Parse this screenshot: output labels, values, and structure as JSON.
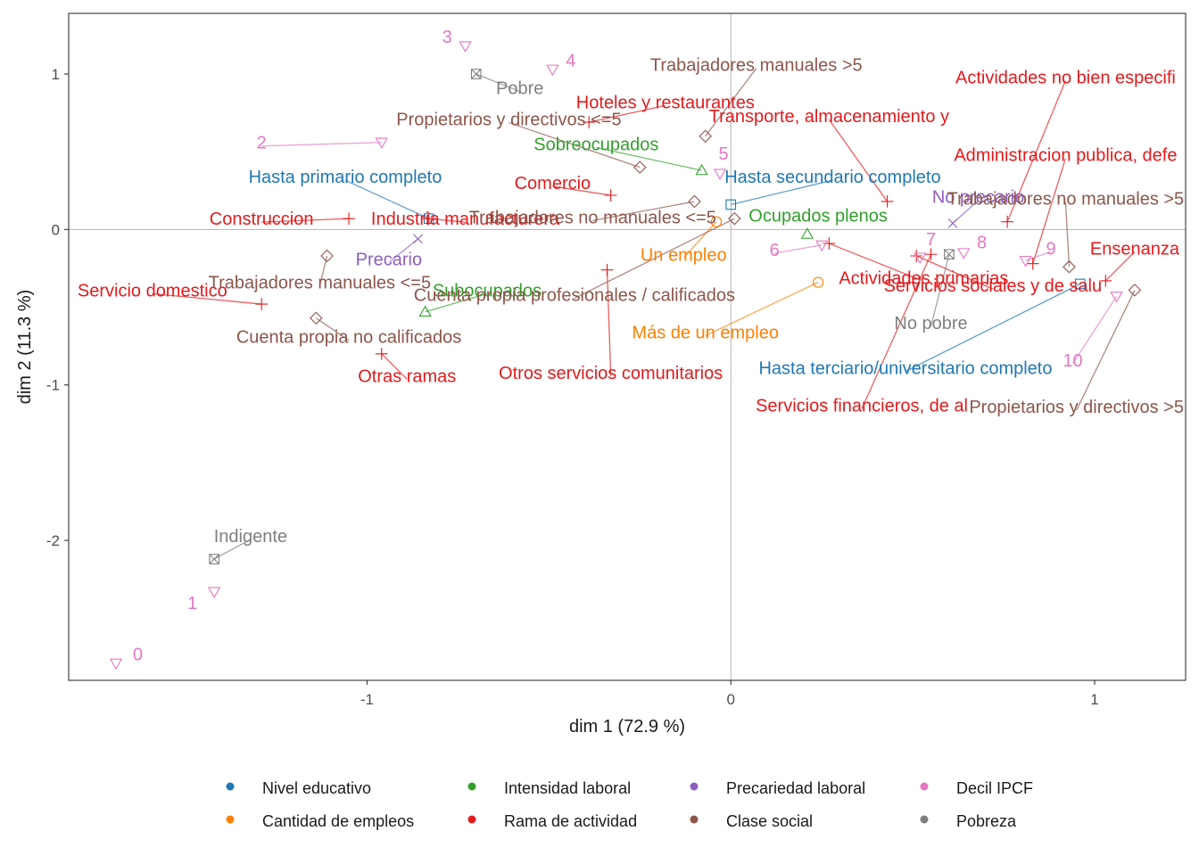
{
  "chart_data": {
    "type": "scatter",
    "xlabel": "dim 1 (72.9 %)",
    "ylabel": "dim 2 (11.3 %)",
    "xlim": [
      -1.82,
      1.25
    ],
    "ylim": [
      -2.9,
      1.39
    ],
    "xticks": [
      {
        "v": -1,
        "label": "-1"
      },
      {
        "v": 0,
        "label": "0"
      },
      {
        "v": 1,
        "label": "1"
      }
    ],
    "yticks": [
      {
        "v": -2,
        "label": "-2"
      },
      {
        "v": -1,
        "label": "-1"
      },
      {
        "v": 0,
        "label": "0"
      },
      {
        "v": 1,
        "label": "1"
      }
    ],
    "reference_lines": [
      0,
      0
    ],
    "grid": false,
    "legend_position": "bottom",
    "groups": [
      {
        "name": "Nivel educativo",
        "color": "#1f78b4",
        "shape": "square"
      },
      {
        "name": "Cantidad de empleos",
        "color": "#ff7f00",
        "shape": "circle"
      },
      {
        "name": "Intensidad laboral",
        "color": "#33a02c",
        "shape": "triangle-up"
      },
      {
        "name": "Rama de actividad",
        "color": "#e31a1c",
        "shape": "plus"
      },
      {
        "name": "Precariedad laboral",
        "color": "#8e5fbf",
        "shape": "cross"
      },
      {
        "name": "Clase social",
        "color": "#8c564b",
        "shape": "diamond"
      },
      {
        "name": "Decil IPCF",
        "color": "#e377c2",
        "shape": "triangle-down"
      },
      {
        "name": "Pobreza",
        "color": "#7f7f7f",
        "shape": "square-x"
      }
    ],
    "points": [
      {
        "g": 0,
        "label": "Hasta primario completo",
        "x": -0.83,
        "y": 0.07,
        "lx": -1.06,
        "ly": 0.34,
        "anchor": "middle"
      },
      {
        "g": 0,
        "label": "Hasta secundario completo",
        "x": 0.0,
        "y": 0.16,
        "lx": 0.28,
        "ly": 0.34,
        "anchor": "middle"
      },
      {
        "g": 0,
        "label": "Hasta terciario/universitario completo",
        "x": 0.96,
        "y": -0.35,
        "lx": 0.48,
        "ly": -0.89,
        "anchor": "middle"
      },
      {
        "g": 1,
        "label": "Un empleo",
        "x": -0.04,
        "y": 0.05,
        "lx": -0.13,
        "ly": -0.16,
        "anchor": "middle"
      },
      {
        "g": 1,
        "label": "Más de un empleo",
        "x": 0.24,
        "y": -0.34,
        "lx": -0.07,
        "ly": -0.66,
        "anchor": "middle"
      },
      {
        "g": 2,
        "label": "Sobreocupados",
        "x": -0.08,
        "y": 0.38,
        "lx": -0.37,
        "ly": 0.55,
        "anchor": "middle"
      },
      {
        "g": 2,
        "label": "Ocupados plenos",
        "x": 0.21,
        "y": -0.03,
        "lx": 0.24,
        "ly": 0.09,
        "anchor": "middle"
      },
      {
        "g": 2,
        "label": "Subocupados",
        "x": -0.84,
        "y": -0.53,
        "lx": -0.67,
        "ly": -0.39,
        "anchor": "middle"
      },
      {
        "g": 3,
        "label": "Hoteles y restaurantes",
        "x": -0.39,
        "y": 0.69,
        "lx": -0.18,
        "ly": 0.82,
        "anchor": "middle"
      },
      {
        "g": 3,
        "label": "Transporte, almacenamiento y",
        "x": 0.43,
        "y": 0.18,
        "lx": 0.27,
        "ly": 0.73,
        "anchor": "middle"
      },
      {
        "g": 3,
        "label": "Actividades no bien especifi",
        "x": 0.76,
        "y": 0.05,
        "lx": 0.92,
        "ly": 0.98,
        "anchor": "middle"
      },
      {
        "g": 3,
        "label": "Administracion publica, defe",
        "x": 0.83,
        "y": -0.22,
        "lx": 0.92,
        "ly": 0.48,
        "anchor": "middle"
      },
      {
        "g": 3,
        "label": "Comercio",
        "x": -0.33,
        "y": 0.22,
        "lx": -0.49,
        "ly": 0.3,
        "anchor": "middle"
      },
      {
        "g": 3,
        "label": "Construccion",
        "x": -1.05,
        "y": 0.07,
        "lx": -1.29,
        "ly": 0.07,
        "anchor": "middle"
      },
      {
        "g": 3,
        "label": "Industria manufacturera",
        "x": -0.83,
        "y": 0.07,
        "lx": -0.73,
        "ly": 0.07,
        "anchor": "middle"
      },
      {
        "g": 3,
        "label": "Ensenanza",
        "x": 1.03,
        "y": -0.33,
        "lx": 1.11,
        "ly": -0.12,
        "anchor": "middle"
      },
      {
        "g": 3,
        "label": "Actividades primarias",
        "x": 0.27,
        "y": -0.09,
        "lx": 0.53,
        "ly": -0.31,
        "anchor": "middle"
      },
      {
        "g": 3,
        "label": "Servicios sociales y de salu",
        "x": 0.51,
        "y": -0.17,
        "lx": 0.72,
        "ly": -0.36,
        "anchor": "middle"
      },
      {
        "g": 3,
        "label": "Servicio domestico",
        "x": -1.29,
        "y": -0.48,
        "lx": -1.59,
        "ly": -0.39,
        "anchor": "middle"
      },
      {
        "g": 3,
        "label": "Otras ramas",
        "x": -0.96,
        "y": -0.8,
        "lx": -0.89,
        "ly": -0.94,
        "anchor": "middle"
      },
      {
        "g": 3,
        "label": "Otros servicios comunitarios",
        "x": -0.34,
        "y": -0.26,
        "lx": -0.33,
        "ly": -0.92,
        "anchor": "middle"
      },
      {
        "g": 3,
        "label": "Servicios financieros, de al",
        "x": 0.55,
        "y": -0.16,
        "lx": 0.36,
        "ly": -1.13,
        "anchor": "middle"
      },
      {
        "g": 4,
        "label": "Precario",
        "x": -0.86,
        "y": -0.06,
        "lx": -0.94,
        "ly": -0.19,
        "anchor": "middle"
      },
      {
        "g": 4,
        "label": "No precario",
        "x": 0.61,
        "y": 0.04,
        "lx": 0.68,
        "ly": 0.21,
        "anchor": "middle"
      },
      {
        "g": 5,
        "label": "Trabajadores manuales >5",
        "x": -0.07,
        "y": 0.6,
        "lx": 0.07,
        "ly": 1.06,
        "anchor": "middle"
      },
      {
        "g": 5,
        "label": "Propietarios y directivos <=5",
        "x": -0.25,
        "y": 0.4,
        "lx": -0.61,
        "ly": 0.71,
        "anchor": "middle"
      },
      {
        "g": 5,
        "label": "Trabajadores manuales <=5",
        "x": -1.11,
        "y": -0.17,
        "lx": -1.13,
        "ly": -0.34,
        "anchor": "middle"
      },
      {
        "g": 5,
        "label": "Cuenta propia no calificados",
        "x": -1.14,
        "y": -0.57,
        "lx": -1.05,
        "ly": -0.69,
        "anchor": "middle"
      },
      {
        "g": 5,
        "label": "Trabajadores no manuales <=5",
        "x": -0.1,
        "y": 0.18,
        "lx": -0.38,
        "ly": 0.08,
        "anchor": "middle"
      },
      {
        "g": 5,
        "label": "Cuenta propia profesionales / calificados",
        "x": 0.01,
        "y": 0.07,
        "lx": -0.43,
        "ly": -0.42,
        "anchor": "middle"
      },
      {
        "g": 5,
        "label": "Trabajadores no manuales >5",
        "x": 0.93,
        "y": -0.24,
        "lx": 0.92,
        "ly": 0.2,
        "anchor": "middle"
      },
      {
        "g": 5,
        "label": "Propietarios y directivos >5",
        "x": 1.11,
        "y": -0.39,
        "lx": 0.95,
        "ly": -1.14,
        "anchor": "middle"
      },
      {
        "g": 6,
        "label": "0",
        "x": -1.69,
        "y": -2.79,
        "lx": -1.63,
        "ly": -2.73,
        "anchor": "middle"
      },
      {
        "g": 6,
        "label": "1",
        "x": -1.42,
        "y": -2.33,
        "lx": -1.48,
        "ly": -2.4,
        "anchor": "middle"
      },
      {
        "g": 6,
        "label": "2",
        "x": -0.96,
        "y": 0.56,
        "lx": -1.29,
        "ly": 0.56,
        "anchor": "middle"
      },
      {
        "g": 6,
        "label": "3",
        "x": -0.73,
        "y": 1.18,
        "lx": -0.78,
        "ly": 1.24,
        "anchor": "middle"
      },
      {
        "g": 6,
        "label": "4",
        "x": -0.49,
        "y": 1.03,
        "lx": -0.44,
        "ly": 1.09,
        "anchor": "middle"
      },
      {
        "g": 6,
        "label": "5",
        "x": -0.03,
        "y": 0.36,
        "lx": -0.02,
        "ly": 0.49,
        "anchor": "middle"
      },
      {
        "g": 6,
        "label": "6",
        "x": 0.25,
        "y": -0.1,
        "lx": 0.12,
        "ly": -0.13,
        "anchor": "middle"
      },
      {
        "g": 6,
        "label": "7",
        "x": 0.52,
        "y": -0.18,
        "lx": 0.55,
        "ly": -0.06,
        "anchor": "middle"
      },
      {
        "g": 6,
        "label": "8",
        "x": 0.64,
        "y": -0.15,
        "lx": 0.69,
        "ly": -0.08,
        "anchor": "middle"
      },
      {
        "g": 6,
        "label": "9",
        "x": 0.81,
        "y": -0.2,
        "lx": 0.88,
        "ly": -0.12,
        "anchor": "middle"
      },
      {
        "g": 6,
        "label": "10",
        "x": 1.06,
        "y": -0.43,
        "lx": 0.94,
        "ly": -0.84,
        "anchor": "middle"
      },
      {
        "g": 7,
        "label": "Pobre",
        "x": -0.7,
        "y": 1.0,
        "lx": -0.58,
        "ly": 0.91,
        "anchor": "middle"
      },
      {
        "g": 7,
        "label": "No pobre",
        "x": 0.6,
        "y": -0.16,
        "lx": 0.55,
        "ly": -0.6,
        "anchor": "middle"
      },
      {
        "g": 7,
        "label": "Indigente",
        "x": -1.42,
        "y": -2.12,
        "lx": -1.32,
        "ly": -1.97,
        "anchor": "middle"
      }
    ]
  }
}
